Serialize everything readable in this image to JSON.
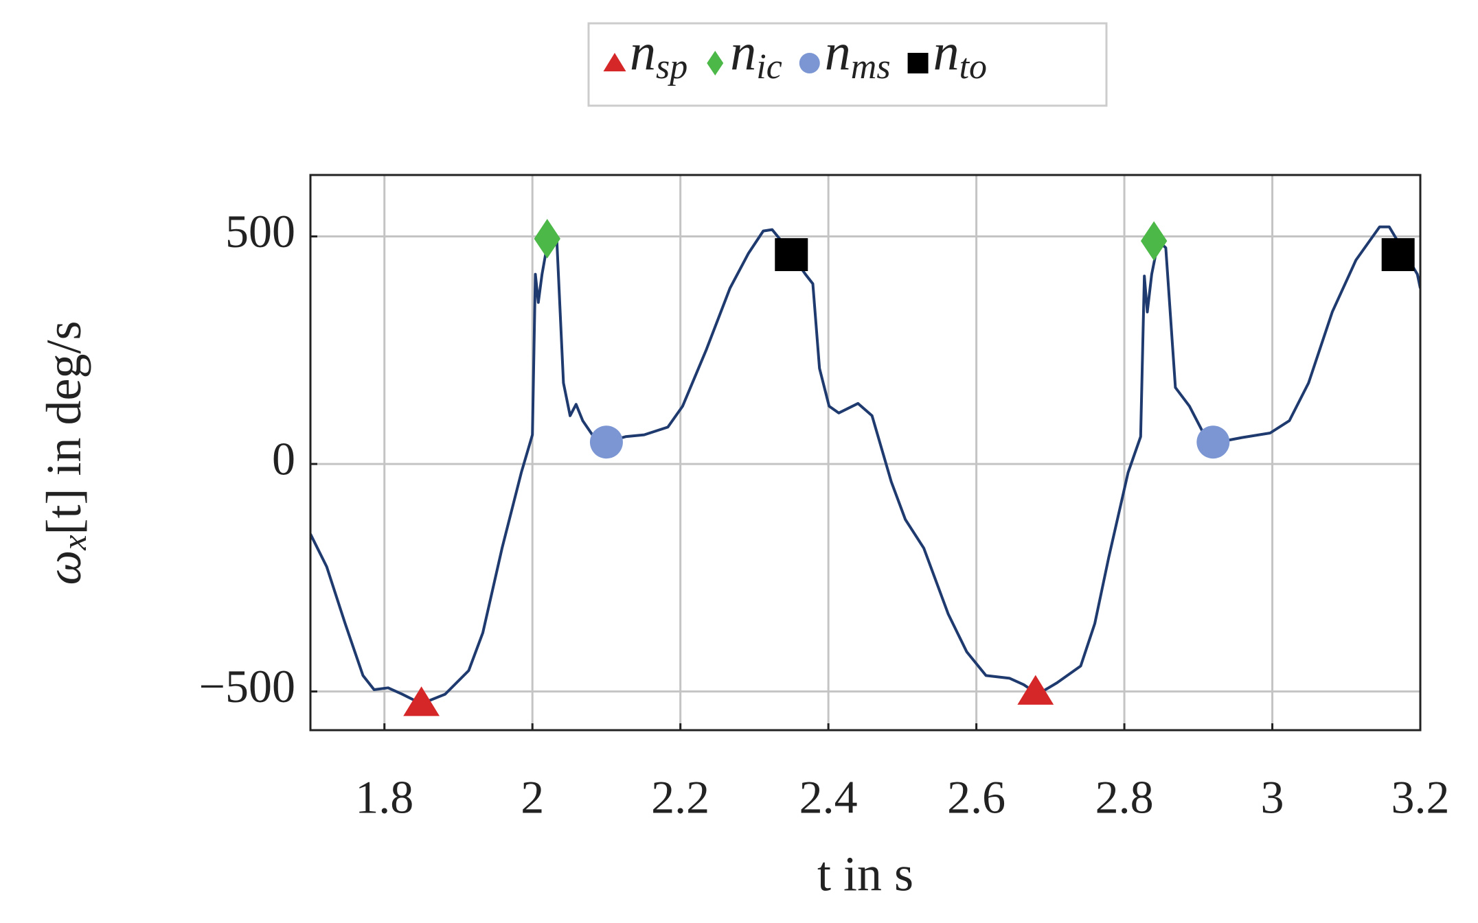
{
  "chart_data": {
    "type": "line",
    "xlabel": "t in s",
    "ylabel": {
      "symbol": "ω",
      "subscript": "x",
      "rest": "[t] in deg/s"
    },
    "xlim": [
      1.7,
      3.2
    ],
    "ylim": [
      -585,
      635
    ],
    "xticks": [
      1.8,
      2,
      2.2,
      2.4,
      2.6,
      2.8,
      3,
      3.2
    ],
    "yticks": [
      {
        "value": -500,
        "label": "−500"
      },
      0,
      500
    ],
    "grid": true,
    "series": [
      {
        "type": "line",
        "color": "#1f3a6e",
        "x": [
          1.7,
          1.722,
          1.747,
          1.771,
          1.786,
          1.805,
          1.824,
          1.85,
          1.882,
          1.914,
          1.933,
          1.959,
          1.985,
          2.0,
          2.004,
          2.008,
          2.013,
          2.021,
          2.033,
          2.042,
          2.051,
          2.059,
          2.068,
          2.081,
          2.1,
          2.126,
          2.151,
          2.183,
          2.203,
          2.235,
          2.267,
          2.292,
          2.312,
          2.324,
          2.344,
          2.369,
          2.379,
          2.388,
          2.401,
          2.414,
          2.44,
          2.459,
          2.485,
          2.504,
          2.529,
          2.562,
          2.587,
          2.613,
          2.645,
          2.664,
          2.683,
          2.709,
          2.741,
          2.76,
          2.779,
          2.805,
          2.822,
          2.827,
          2.831,
          2.837,
          2.846,
          2.856,
          2.869,
          2.888,
          2.908,
          2.927,
          2.959,
          2.997,
          3.023,
          3.049,
          3.081,
          3.113,
          3.145,
          3.158,
          3.177,
          3.196,
          3.2
        ],
        "values": [
          -154,
          -226,
          -351,
          -465,
          -496,
          -492,
          -506,
          -527,
          -506,
          -454,
          -371,
          -185,
          -19,
          64,
          417,
          355,
          417,
          490,
          490,
          178,
          106,
          131,
          95,
          64,
          48,
          60,
          64,
          81,
          127,
          251,
          386,
          463,
          512,
          515,
          475,
          417,
          396,
          210,
          127,
          112,
          133,
          106,
          -39,
          -122,
          -185,
          -330,
          -413,
          -465,
          -471,
          -485,
          -506,
          -481,
          -444,
          -351,
          -205,
          -19,
          60,
          413,
          334,
          417,
          490,
          475,
          168,
          127,
          64,
          48,
          58,
          68,
          95,
          178,
          334,
          448,
          521,
          521,
          469,
          417,
          386
        ]
      },
      {
        "type": "scatter",
        "name": "n",
        "subscript": "sp",
        "marker": "triangle",
        "color": "#d62728",
        "x": [
          1.85,
          2.68
        ],
        "values": [
          -525,
          -500
        ]
      },
      {
        "type": "scatter",
        "name": "n",
        "subscript": "ic",
        "marker": "diamond",
        "color": "#4cb848",
        "x": [
          2.02,
          2.84
        ],
        "values": [
          495,
          490
        ]
      },
      {
        "type": "scatter",
        "name": "n",
        "subscript": "ms",
        "marker": "circle",
        "color": "#7b96d2",
        "x": [
          2.1,
          2.92
        ],
        "values": [
          48,
          48
        ]
      },
      {
        "type": "scatter",
        "name": "n",
        "subscript": "to",
        "marker": "square",
        "color": "#000000",
        "x": [
          2.35,
          3.17
        ],
        "values": [
          460,
          460
        ]
      }
    ]
  }
}
